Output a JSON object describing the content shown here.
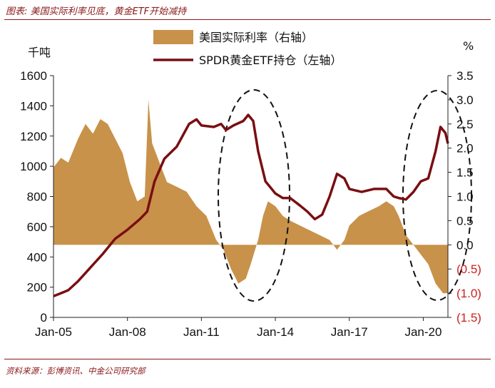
{
  "figure": {
    "title": "图表: 美国实际利率见底，黄金ETF开始减持",
    "source": "资料来源：彭博资讯、中金公司研究部"
  },
  "colors": {
    "area": "#c8924a",
    "line": "#7a0e12",
    "negative_label": "#cc1f1f",
    "frame": "#8a1717"
  },
  "chart_data": {
    "type": "line+area",
    "left_axis": {
      "unit": "千吨",
      "ylim": [
        0,
        1600
      ],
      "ticks": [
        "0",
        "200",
        "400",
        "600",
        "800",
        "1000",
        "1200",
        "1400",
        "1600"
      ],
      "tick_values": [
        0,
        200,
        400,
        600,
        800,
        1000,
        1200,
        1400,
        1600
      ]
    },
    "right_axis": {
      "unit": "%",
      "ylim": [
        -1.5,
        3.5
      ],
      "ticks": [
        "3.5",
        "3.0",
        "2.5",
        "2.0",
        "1.5",
        "1.0",
        "0.5",
        "0.0",
        "(0.5)",
        "(1.0)",
        "(1.5)"
      ],
      "tick_values": [
        3.5,
        3.0,
        2.5,
        2.0,
        1.5,
        1.0,
        0.5,
        0.0,
        -0.5,
        -1.0,
        -1.5
      ]
    },
    "x_axis": {
      "range": [
        2005.0,
        2021.0
      ],
      "ticks": [
        "Jan-05",
        "Jan-08",
        "Jan-11",
        "Jan-14",
        "Jan-17",
        "Jan-20"
      ],
      "tick_values": [
        2005,
        2008,
        2011,
        2014,
        2017,
        2020
      ]
    },
    "series": [
      {
        "name": "美国实际利率（右轴）",
        "type": "area",
        "axis": "right",
        "x": [
          2005.0,
          2005.3,
          2005.6,
          2006.0,
          2006.3,
          2006.6,
          2006.9,
          2007.2,
          2007.5,
          2007.8,
          2008.1,
          2008.4,
          2008.7,
          2008.85,
          2009.0,
          2009.3,
          2009.6,
          2010.0,
          2010.4,
          2010.8,
          2011.2,
          2011.6,
          2011.9,
          2012.2,
          2012.5,
          2012.8,
          2013.0,
          2013.3,
          2013.5,
          2013.7,
          2014.0,
          2014.3,
          2014.6,
          2015.0,
          2015.4,
          2015.8,
          2016.2,
          2016.5,
          2016.8,
          2017.0,
          2017.4,
          2017.8,
          2018.2,
          2018.5,
          2018.8,
          2019.0,
          2019.3,
          2019.6,
          2019.9,
          2020.2,
          2020.5,
          2020.8,
          2021.0
        ],
        "values": [
          1.6,
          1.8,
          1.7,
          2.2,
          2.5,
          2.3,
          2.6,
          2.5,
          2.2,
          1.9,
          1.3,
          0.9,
          1.0,
          3.0,
          2.1,
          1.7,
          1.3,
          1.2,
          1.1,
          0.8,
          0.6,
          0.1,
          -0.1,
          -0.5,
          -0.8,
          -0.7,
          -0.4,
          0.1,
          0.6,
          0.9,
          0.8,
          0.6,
          0.5,
          0.4,
          0.3,
          0.2,
          0.1,
          -0.1,
          0.1,
          0.4,
          0.6,
          0.7,
          0.8,
          0.9,
          0.8,
          0.6,
          0.2,
          0.0,
          -0.2,
          -0.4,
          -0.8,
          -1.0,
          -1.0
        ]
      },
      {
        "name": "SPDR黄金ETF持仓（左轴）",
        "type": "line",
        "axis": "left",
        "x": [
          2005.0,
          2005.3,
          2005.6,
          2006.0,
          2006.5,
          2007.0,
          2007.5,
          2008.0,
          2008.5,
          2008.8,
          2009.1,
          2009.5,
          2010.0,
          2010.5,
          2010.8,
          2011.0,
          2011.5,
          2011.8,
          2012.0,
          2012.3,
          2012.7,
          2012.9,
          2013.1,
          2013.3,
          2013.6,
          2014.0,
          2014.3,
          2014.6,
          2015.0,
          2015.3,
          2015.6,
          2015.9,
          2016.2,
          2016.5,
          2016.8,
          2017.0,
          2017.5,
          2018.0,
          2018.5,
          2018.8,
          2019.0,
          2019.3,
          2019.6,
          2019.9,
          2020.2,
          2020.5,
          2020.7,
          2020.9,
          2021.0
        ],
        "values": [
          140,
          160,
          180,
          240,
          330,
          420,
          520,
          580,
          650,
          700,
          900,
          1050,
          1130,
          1280,
          1310,
          1270,
          1260,
          1280,
          1240,
          1270,
          1300,
          1340,
          1300,
          1100,
          900,
          820,
          790,
          790,
          740,
          700,
          650,
          680,
          800,
          950,
          920,
          850,
          830,
          850,
          850,
          800,
          790,
          780,
          830,
          900,
          920,
          1100,
          1260,
          1220,
          1150
        ]
      }
    ]
  },
  "legend": {
    "area_label": "美国实际利率（右轴）",
    "line_label": "SPDR黄金ETF持仓（左轴）"
  },
  "annotations": [
    {
      "kind": "dashed-ellipse",
      "period": "2011–2013"
    },
    {
      "kind": "dashed-ellipse",
      "period": "2019–2020"
    }
  ]
}
